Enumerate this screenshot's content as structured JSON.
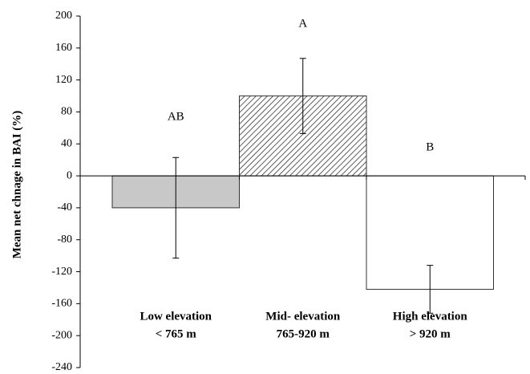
{
  "chart_data": {
    "type": "bar",
    "ylabel": "Mean net chnage in BAI (%)",
    "categories": [
      [
        "Low elevation",
        "< 765 m"
      ],
      [
        "Mid- elevation",
        "765-920 m"
      ],
      [
        "High elevation",
        "> 920 m"
      ]
    ],
    "values": [
      -40,
      100,
      -142
    ],
    "errors": [
      63,
      47,
      30
    ],
    "fills": [
      "#c8c8c8",
      "diagonal-hatch",
      "#ffffff"
    ],
    "annotations": [
      "AB",
      "A",
      "B"
    ],
    "ylim": [
      -240,
      200
    ],
    "yticks": [
      -240,
      -200,
      -160,
      -120,
      -80,
      -40,
      0,
      40,
      80,
      120,
      160,
      200
    ],
    "grid": false
  }
}
